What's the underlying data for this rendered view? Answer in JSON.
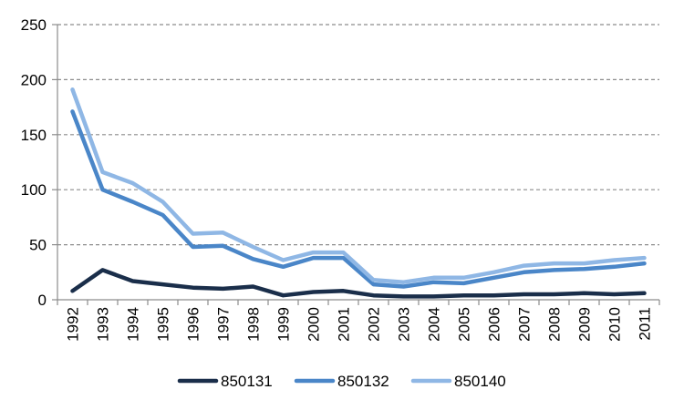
{
  "chart_data": {
    "type": "line",
    "title": "",
    "xlabel": "",
    "ylabel": "",
    "x": [
      "1992",
      "1993",
      "1994",
      "1995",
      "1996",
      "1997",
      "1998",
      "1999",
      "2000",
      "2001",
      "2002",
      "2003",
      "2004",
      "2005",
      "2006",
      "2007",
      "2008",
      "2009",
      "2010",
      "2011"
    ],
    "ylim": [
      0,
      250
    ],
    "yticks": [
      0,
      50,
      100,
      150,
      200,
      250
    ],
    "ytick_labels": [
      "0",
      "50",
      "100",
      "150",
      "200",
      "250"
    ],
    "grid": "horizontal dashed",
    "legend_position": "bottom",
    "series": [
      {
        "name": "850131",
        "color": "#1a2e4a",
        "values": [
          8,
          27,
          17,
          14,
          11,
          10,
          12,
          4,
          7,
          8,
          4,
          3,
          3,
          4,
          4,
          5,
          5,
          6,
          5,
          6
        ]
      },
      {
        "name": "850132",
        "color": "#4a86c8",
        "values": [
          171,
          100,
          89,
          77,
          48,
          49,
          37,
          30,
          38,
          38,
          14,
          12,
          16,
          15,
          20,
          25,
          27,
          28,
          30,
          33
        ]
      },
      {
        "name": "850140",
        "color": "#8fb7e5",
        "values": [
          191,
          116,
          106,
          89,
          60,
          61,
          48,
          36,
          43,
          43,
          18,
          16,
          20,
          20,
          25,
          31,
          33,
          33,
          36,
          38
        ]
      }
    ]
  }
}
